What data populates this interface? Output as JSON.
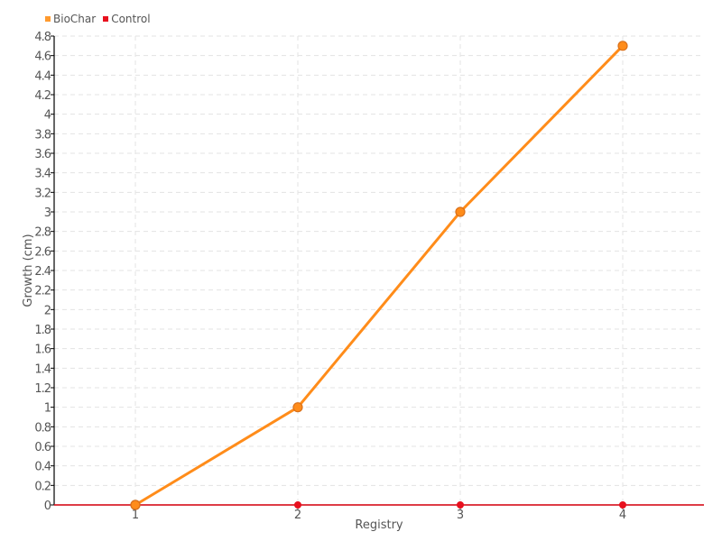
{
  "chart_data": {
    "type": "line",
    "title": "",
    "xlabel": "Registry",
    "ylabel": "Growth (cm)",
    "categories": [
      "1",
      "2",
      "3",
      "4"
    ],
    "ylim": [
      0,
      4.8
    ],
    "ytick_step": 0.2,
    "grid": true,
    "legend_placement": "top-left",
    "series": [
      {
        "name": "BioChar",
        "color": "#ff8c1a",
        "values": [
          0,
          1,
          3,
          4.7
        ]
      },
      {
        "name": "Control",
        "color": "#e8101e",
        "values": [
          0,
          0,
          0,
          0
        ]
      }
    ]
  }
}
